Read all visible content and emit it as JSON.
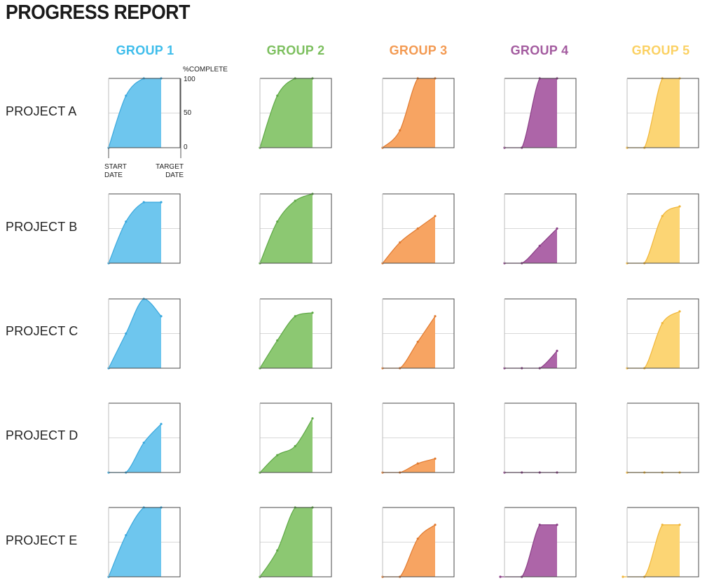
{
  "title": "PROGRESS REPORT",
  "legend": {
    "complete_label": "%COMPLETE",
    "start_label": [
      "START",
      "DATE"
    ],
    "target_label": [
      "TARGET",
      "DATE"
    ]
  },
  "chart_data": {
    "type": "area",
    "title": "PROGRESS REPORT",
    "ylabel": "%COMPLETE",
    "ylim": [
      0,
      100
    ],
    "yticks": [
      0,
      50,
      100
    ],
    "x_range": [
      "START DATE",
      "TARGET DATE"
    ],
    "grid": true,
    "groups": [
      {
        "name": "GROUP 1",
        "color": "#6ec6ee",
        "stroke": "#3aa8dd"
      },
      {
        "name": "GROUP 2",
        "color": "#8cc872",
        "stroke": "#5ea845"
      },
      {
        "name": "GROUP 3",
        "color": "#f7a462",
        "stroke": "#e07a30"
      },
      {
        "name": "GROUP 4",
        "color": "#ad65a8",
        "stroke": "#8a3f86"
      },
      {
        "name": "GROUP 5",
        "color": "#fcd574",
        "stroke": "#f0b63a"
      }
    ],
    "projects": [
      "PROJECT A",
      "PROJECT B",
      "PROJECT C",
      "PROJECT D",
      "PROJECT E"
    ],
    "series": [
      [
        [
          [
            0,
            0
          ],
          [
            0.33,
            75
          ],
          [
            0.67,
            100
          ],
          [
            1,
            100
          ]
        ],
        [
          [
            0,
            0
          ],
          [
            0.33,
            75
          ],
          [
            0.67,
            100
          ],
          [
            1,
            100
          ]
        ],
        [
          [
            0,
            0
          ],
          [
            0.33,
            25
          ],
          [
            0.67,
            100
          ],
          [
            1,
            100
          ]
        ],
        [
          [
            0,
            0
          ],
          [
            0.33,
            0
          ],
          [
            0.67,
            100
          ],
          [
            1,
            100
          ]
        ],
        [
          [
            0,
            0
          ],
          [
            0.33,
            0
          ],
          [
            0.67,
            100
          ],
          [
            1,
            100
          ]
        ]
      ],
      [
        [
          [
            0,
            0
          ],
          [
            0.33,
            60
          ],
          [
            0.67,
            88
          ],
          [
            1,
            88
          ]
        ],
        [
          [
            0,
            0
          ],
          [
            0.33,
            60
          ],
          [
            0.67,
            90
          ],
          [
            1,
            100
          ]
        ],
        [
          [
            0,
            0
          ],
          [
            0.33,
            30
          ],
          [
            0.67,
            50
          ],
          [
            1,
            68
          ]
        ],
        [
          [
            0,
            0
          ],
          [
            0.33,
            0
          ],
          [
            0.67,
            25
          ],
          [
            1,
            50
          ]
        ],
        [
          [
            0,
            0
          ],
          [
            0.33,
            0
          ],
          [
            0.67,
            68
          ],
          [
            1,
            82
          ]
        ]
      ],
      [
        [
          [
            0,
            0
          ],
          [
            0.33,
            50
          ],
          [
            0.67,
            100
          ],
          [
            1,
            75
          ]
        ],
        [
          [
            0,
            0
          ],
          [
            0.33,
            40
          ],
          [
            0.67,
            75
          ],
          [
            1,
            80
          ]
        ],
        [
          [
            0,
            0
          ],
          [
            0.33,
            0
          ],
          [
            0.67,
            38
          ],
          [
            1,
            75
          ]
        ],
        [
          [
            0,
            0
          ],
          [
            0.33,
            0
          ],
          [
            0.67,
            0
          ],
          [
            1,
            25
          ]
        ],
        [
          [
            0,
            0
          ],
          [
            0.33,
            0
          ],
          [
            0.67,
            65
          ],
          [
            1,
            82
          ]
        ]
      ],
      [
        [
          [
            0,
            0
          ],
          [
            0.33,
            0
          ],
          [
            0.67,
            43
          ],
          [
            1,
            70
          ]
        ],
        [
          [
            0,
            0
          ],
          [
            0.33,
            25
          ],
          [
            0.67,
            38
          ],
          [
            1,
            78
          ]
        ],
        [
          [
            0,
            0
          ],
          [
            0.33,
            0
          ],
          [
            0.67,
            13
          ],
          [
            1,
            20
          ]
        ],
        [
          [
            0,
            0
          ],
          [
            0.33,
            0
          ],
          [
            0.67,
            0
          ],
          [
            1,
            0
          ]
        ],
        [
          [
            0,
            0
          ],
          [
            0.33,
            0
          ],
          [
            0.67,
            0
          ],
          [
            1,
            0
          ]
        ]
      ],
      [
        [
          [
            0,
            0
          ],
          [
            0.33,
            60
          ],
          [
            0.67,
            100
          ],
          [
            1,
            100
          ]
        ],
        [
          [
            0,
            0
          ],
          [
            0.33,
            38
          ],
          [
            0.67,
            100
          ],
          [
            1,
            100
          ]
        ],
        [
          [
            0,
            0
          ],
          [
            0.33,
            0
          ],
          [
            0.67,
            55
          ],
          [
            1,
            75
          ]
        ],
        [
          [
            -0.08,
            0
          ],
          [
            0.33,
            0
          ],
          [
            0.67,
            75
          ],
          [
            1,
            75
          ]
        ],
        [
          [
            -0.08,
            0
          ],
          [
            0.33,
            0
          ],
          [
            0.67,
            75
          ],
          [
            1,
            75
          ]
        ]
      ]
    ]
  }
}
